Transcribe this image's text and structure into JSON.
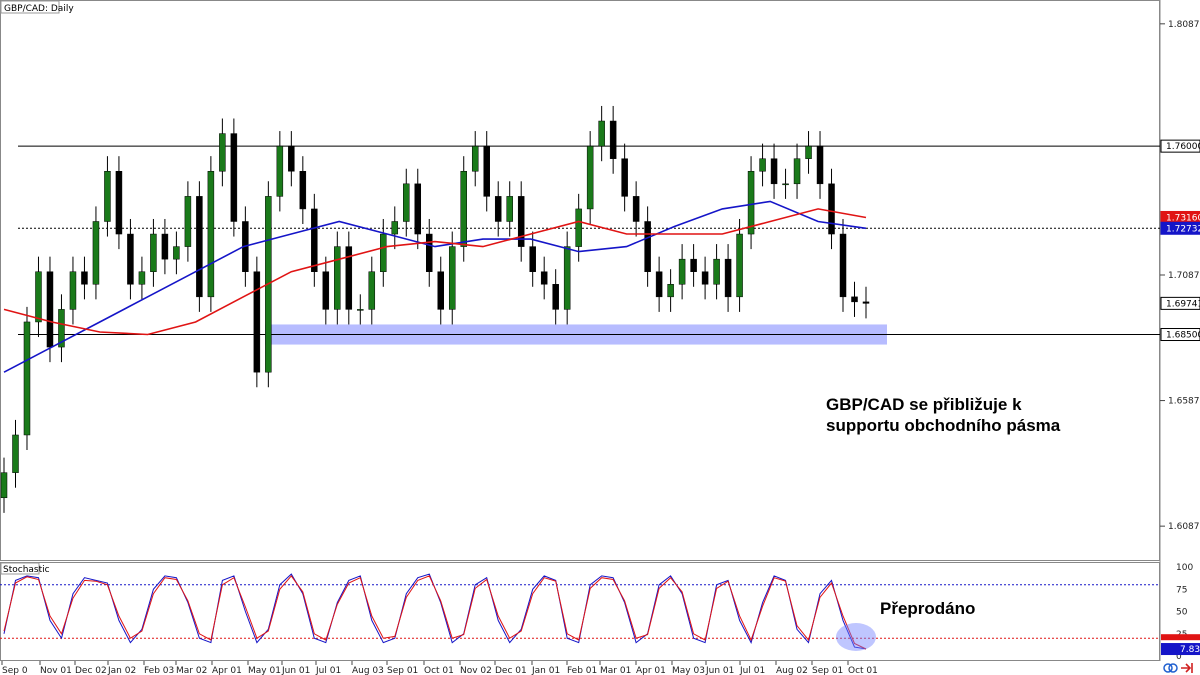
{
  "chart_data": [
    {
      "type": "candlestick",
      "title": "GBP/CAD: Daily",
      "ylim": [
        1.6,
        1.815
      ],
      "y_ticks": [
        "1.80870",
        "1.70870",
        "1.65870",
        "1.60870"
      ],
      "x_ticks": [
        "Sep 0",
        "Nov 01",
        "Dec 02",
        "Jan 02",
        "Feb 03",
        "Mar 02",
        "Apr 01",
        "May 01",
        "Jun 01",
        "Jul 01",
        "Aug 03",
        "Sep 01",
        "Oct 01",
        "Nov 02",
        "Dec 01",
        "Jan 01",
        "Feb 01",
        "Mar 01",
        "Apr 01",
        "May 03",
        "Jun 01",
        "Jul 01",
        "Aug 02",
        "Sep 01",
        "Oct 01"
      ],
      "series": [
        {
          "values": [
            1.63,
            1.645,
            1.69,
            1.71,
            1.68,
            1.695,
            1.71,
            1.705,
            1.73,
            1.75,
            1.725,
            1.705,
            1.71,
            1.725,
            1.715,
            1.72,
            1.74,
            1.7,
            1.75,
            1.765,
            1.73,
            1.71,
            1.67,
            1.74,
            1.76,
            1.75,
            1.735,
            1.71,
            1.695,
            1.72,
            1.695,
            1.695,
            1.71,
            1.725,
            1.73,
            1.745,
            1.725,
            1.71,
            1.695,
            1.72,
            1.75,
            1.76,
            1.74,
            1.73,
            1.74,
            1.72,
            1.71,
            1.705,
            1.695,
            1.72,
            1.735,
            1.76,
            1.77,
            1.755,
            1.74,
            1.73,
            1.71,
            1.7,
            1.705,
            1.715,
            1.71,
            1.705,
            1.715,
            1.7,
            1.725,
            1.75,
            1.755,
            1.745,
            1.745,
            1.755,
            1.76,
            1.745,
            1.725,
            1.7,
            1.698,
            1.6974
          ]
        },
        {
          "values": [
            1.67,
            1.68,
            1.69,
            1.7,
            1.71,
            1.72,
            1.725,
            1.73,
            1.725,
            1.72,
            1.723,
            1.723,
            1.718,
            1.72,
            1.728,
            1.735,
            1.738,
            1.73,
            1.7273
          ]
        },
        {
          "values": [
            1.695,
            1.69,
            1.686,
            1.685,
            1.69,
            1.7,
            1.71,
            1.715,
            1.72,
            1.722,
            1.72,
            1.725,
            1.73,
            1.725,
            1.725,
            1.725,
            1.73,
            1.735,
            1.7316
          ]
        }
      ],
      "moving_average_colors": [
        "#1515c8",
        "#e01414"
      ],
      "candle_up_color": "#1a7a1a",
      "candle_down_color": "#000000",
      "horizontal_lines": [
        {
          "value": 1.76,
          "style": "solid",
          "label": "1.76000"
        },
        {
          "value": 1.7273,
          "style": "dotted"
        },
        {
          "value": 1.685,
          "style": "solid",
          "label": "1.68500"
        }
      ],
      "price_badges": [
        {
          "label": "1.73160",
          "color": "#e01414"
        },
        {
          "label": "1.72732",
          "color": "#1515c8"
        },
        {
          "label": "1.69741",
          "color": "#000000"
        }
      ],
      "support_zone": {
        "from": 1.681,
        "to": 1.689,
        "color": "#aab0ff"
      },
      "annotation": "GBP/CAD se přibližuje k\nsupportu obchodního pásma",
      "grid": false
    },
    {
      "type": "line",
      "title": "Stochastic",
      "ylim": [
        0,
        100
      ],
      "y_ticks": [
        "100",
        "75",
        "50",
        "25",
        "0"
      ],
      "levels": [
        80,
        20
      ],
      "series": [
        {
          "color": "#1515c8",
          "values": [
            25,
            85,
            90,
            88,
            40,
            20,
            70,
            88,
            85,
            82,
            40,
            15,
            30,
            75,
            90,
            88,
            60,
            20,
            15,
            85,
            90,
            50,
            15,
            30,
            80,
            92,
            70,
            20,
            15,
            60,
            85,
            90,
            40,
            15,
            20,
            70,
            88,
            92,
            60,
            15,
            25,
            80,
            88,
            40,
            15,
            30,
            75,
            90,
            85,
            20,
            15,
            80,
            90,
            88,
            60,
            15,
            25,
            80,
            90,
            70,
            20,
            15,
            80,
            85,
            40,
            15,
            60,
            90,
            85,
            30,
            15,
            70,
            85,
            40,
            10,
            8
          ]
        },
        {
          "color": "#e01414",
          "values": [
            28,
            82,
            89,
            86,
            45,
            25,
            65,
            85,
            84,
            80,
            45,
            20,
            28,
            70,
            88,
            86,
            62,
            25,
            18,
            80,
            88,
            55,
            20,
            28,
            75,
            90,
            72,
            25,
            18,
            58,
            82,
            88,
            45,
            20,
            22,
            66,
            85,
            90,
            62,
            20,
            24,
            76,
            86,
            45,
            20,
            28,
            70,
            88,
            84,
            25,
            18,
            76,
            88,
            86,
            62,
            20,
            24,
            76,
            88,
            72,
            25,
            18,
            76,
            84,
            45,
            18,
            56,
            88,
            84,
            34,
            18,
            66,
            82,
            45,
            14,
            7.83
          ]
        }
      ],
      "badges": [
        {
          "label": "7.83"
        }
      ],
      "annotation": "Přeprodáno"
    }
  ]
}
